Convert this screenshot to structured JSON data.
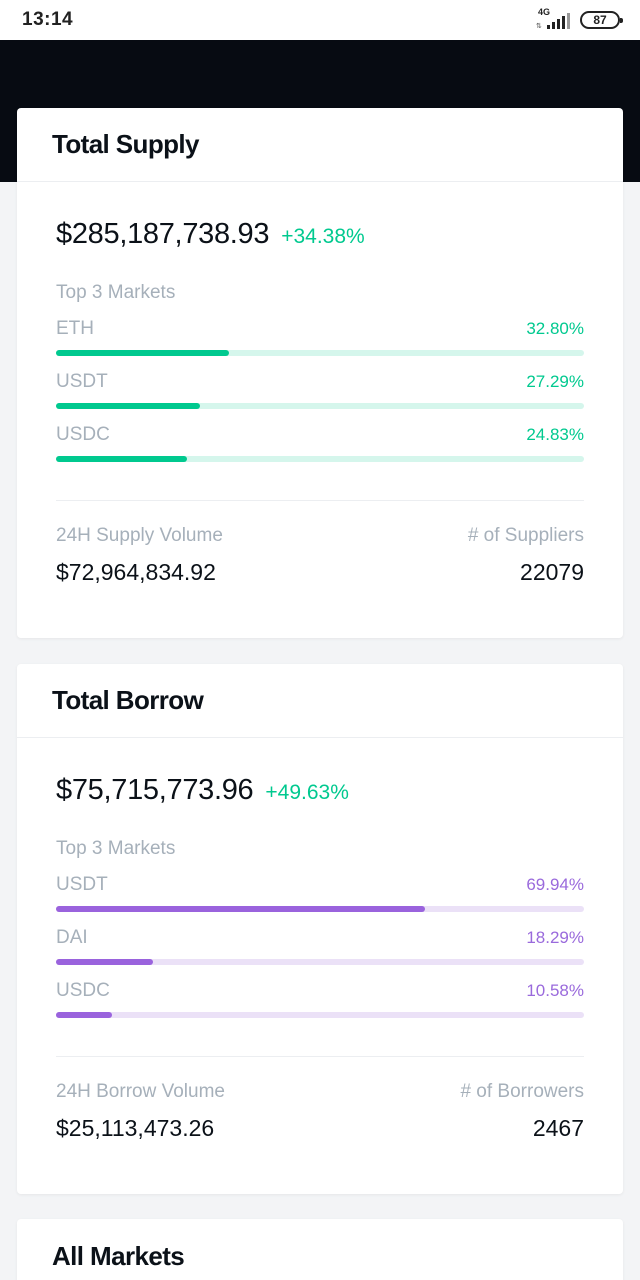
{
  "status_bar": {
    "time": "13:14",
    "network": "4G",
    "battery": "87"
  },
  "supply": {
    "title": "Total Supply",
    "total": "$285,187,738.93",
    "change": "+34.38%",
    "top_markets_label": "Top 3 Markets",
    "markets": [
      {
        "name": "ETH",
        "percent": "32.80%",
        "fraction": 0.328
      },
      {
        "name": "USDT",
        "percent": "27.29%",
        "fraction": 0.2729
      },
      {
        "name": "USDC",
        "percent": "24.83%",
        "fraction": 0.2483
      }
    ],
    "volume_label": "24H Supply Volume",
    "volume_value": "$72,964,834.92",
    "count_label": "# of Suppliers",
    "count_value": "22079",
    "accent_color": "#00c98f"
  },
  "borrow": {
    "title": "Total Borrow",
    "total": "$75,715,773.96",
    "change": "+49.63%",
    "top_markets_label": "Top 3 Markets",
    "markets": [
      {
        "name": "USDT",
        "percent": "69.94%",
        "fraction": 0.6994
      },
      {
        "name": "DAI",
        "percent": "18.29%",
        "fraction": 0.1829
      },
      {
        "name": "USDC",
        "percent": "10.58%",
        "fraction": 0.1058
      }
    ],
    "volume_label": "24H Borrow Volume",
    "volume_value": "$25,113,473.26",
    "count_label": "# of Borrowers",
    "count_value": "2467",
    "accent_color": "#9a63dd"
  },
  "all_markets": {
    "title": "All Markets"
  }
}
